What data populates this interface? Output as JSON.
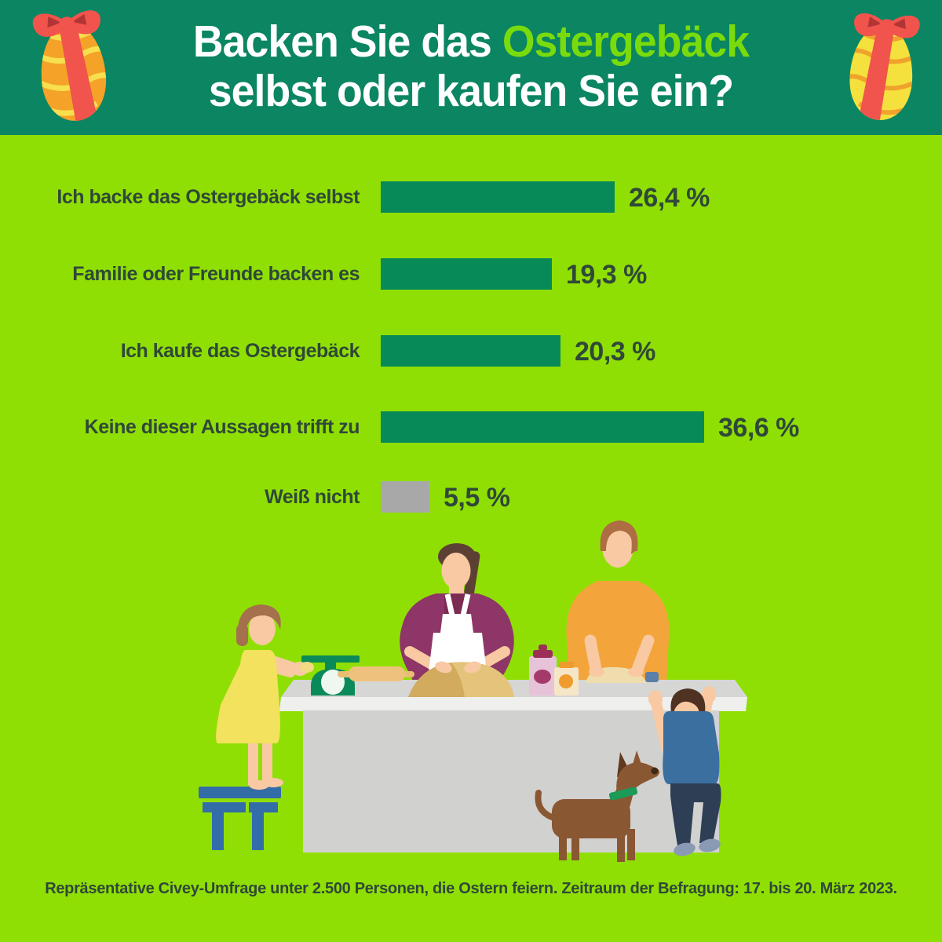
{
  "page": {
    "background": "#90df04"
  },
  "header": {
    "background": "#0b8562",
    "title_line1_prefix": "Backen Sie das ",
    "title_line1_accent": "Ostergebäck",
    "title_line2": "selbst oder kaufen Sie ein?",
    "title_color": "#ffffff",
    "accent_color": "#7adb0c",
    "decorations": [
      "easter-egg-left",
      "easter-egg-right"
    ]
  },
  "chart_data": {
    "type": "bar",
    "orientation": "horizontal",
    "unit": "percent",
    "categories": [
      "Ich backe das Ostergebäck selbst",
      "Familie oder Freunde backen es",
      "Ich kaufe das Ostergebäck",
      "Keine dieser Aussagen trifft zu",
      "Weiß nicht"
    ],
    "values": [
      26.4,
      19.3,
      20.3,
      36.6,
      5.5
    ],
    "value_labels": [
      "26,4 %",
      "19,3 %",
      "20,3 %",
      "36,6 %",
      "5,5 %"
    ],
    "bar_colors": [
      "#088a58",
      "#088a58",
      "#088a58",
      "#088a58",
      "#a8a8a8"
    ],
    "xlim": [
      0,
      40
    ],
    "grid": false,
    "legend": false,
    "label_color": "#2f4838",
    "value_color": "#2f4838"
  },
  "footer": {
    "source_text": "Repräsentative Civey-Umfrage unter 2.500 Personen, die Ostern feiern. Zeitraum der Befragung: 17. bis 20. März 2023.",
    "color": "#2f4838"
  },
  "illustration": {
    "scene": "family-baking-easter-cookies-at-kitchen-counter",
    "elements": [
      "girl-on-stool",
      "kitchen-scale",
      "rolling-pin",
      "mother-kneading-dough",
      "storage-jars",
      "father-shaping-dough",
      "boy-reaching-up",
      "dog-with-green-collar",
      "kitchen-counter"
    ],
    "colors": {
      "counter_top": "#d6d6d5",
      "counter_front": "#efefee",
      "counter_body": "#d1d1d0",
      "skin": "#f8c9a2",
      "mother_cardigan": "#8d3667",
      "mother_top": "#7c2b52",
      "mother_apron": "#ffffff",
      "father_shirt": "#f3a53c",
      "girl_dress": "#f2e25e",
      "boy_shirt": "#3a6f9f",
      "boy_pants": "#2e3f55",
      "boy_shoes": "#8a9ab5",
      "dog": "#8a5733",
      "dog_collar": "#1b9a58",
      "stool": "#336da8",
      "scale": "#0b8a59",
      "dough": "#dcb96e",
      "rolling_pin": "#eec27d",
      "egg_orange": "#f4a328",
      "egg_yellow": "#f5e13d",
      "ribbon_red": "#f0544c",
      "hair_brown": "#5d4034"
    }
  }
}
